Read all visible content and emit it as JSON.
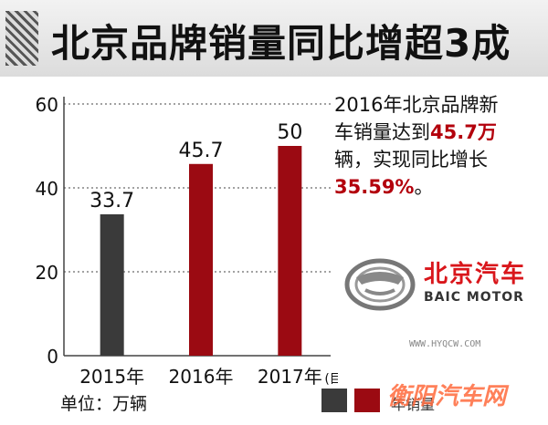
{
  "title": "北京品牌销量同比增超3成",
  "note": {
    "line1": "2016年北京品牌新",
    "line2a": "车销量达到",
    "line2b": "45.7万",
    "line3": "辆，实现同比增长",
    "line4": "35.59%",
    "line4_suffix": "。"
  },
  "logo": {
    "cn": "北京汽车",
    "en": "BAIC MOTOR"
  },
  "unit": "单位：万辆",
  "legend": {
    "label": "年销量"
  },
  "watermark": {
    "url": "WWW.HYQCW.COM",
    "site": "衡阳汽车网"
  },
  "colors": {
    "dark": "#3a3a3a",
    "red": "#9b0a12",
    "accent": "#b3000c"
  },
  "chart_data": {
    "type": "bar",
    "categories": [
      "2015年",
      "2016年",
      "2017年"
    ],
    "category_suffix": [
      "",
      "",
      "(目标)"
    ],
    "values": [
      33.7,
      45.7,
      50
    ],
    "labels": [
      "33.7",
      "45.7",
      "50"
    ],
    "bar_colors": [
      "#3a3a3a",
      "#9b0a12",
      "#9b0a12"
    ],
    "ylim": [
      0,
      60
    ],
    "yticks": [
      0,
      20,
      40,
      60
    ],
    "grid": "dashed horizontal"
  }
}
